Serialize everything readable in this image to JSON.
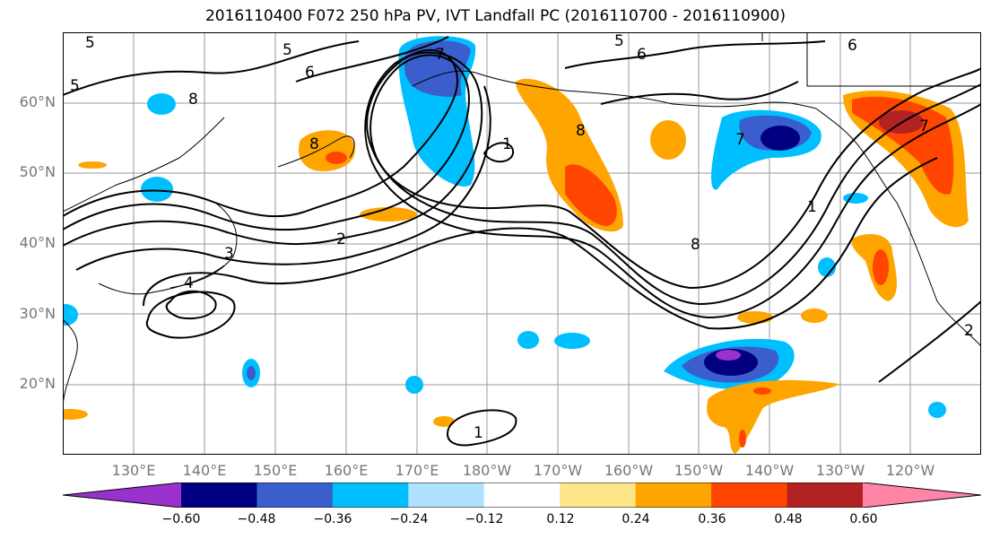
{
  "title": "2016110400 F072 250 hPa PV, IVT Landfall PC (2016110700 - 2016110900)",
  "lat_labels": [
    "60°N",
    "50°N",
    "40°N",
    "30°N",
    "20°N"
  ],
  "lon_labels": [
    "130°E",
    "140°E",
    "150°E",
    "160°E",
    "170°E",
    "180°W",
    "170°W",
    "160°W",
    "150°W",
    "140°W",
    "130°W",
    "120°W"
  ],
  "contour_labels": [
    "5",
    "5",
    "5",
    "5",
    "6",
    "6",
    "6",
    "7",
    "7",
    "7",
    "8",
    "8",
    "8",
    "8",
    "1",
    "1",
    "1",
    "2",
    "2",
    "3",
    "4"
  ],
  "colorbar": {
    "ticks": [
      "−0.60",
      "−0.48",
      "−0.36",
      "−0.24",
      "−0.12",
      "0.12",
      "0.24",
      "0.36",
      "0.48",
      "0.60"
    ],
    "colors": [
      "#9932cc",
      "#000080",
      "#3a5fcd",
      "#00bfff",
      "#b0e2ff",
      "#ffffff",
      "#fde68a",
      "#ffa500",
      "#ff4500",
      "#b22222",
      "#ff85a8"
    ]
  },
  "chart_data": {
    "type": "heatmap",
    "title": "2016110400 F072 250 hPa PV, IVT Landfall PC (2016110700 - 2016110900)",
    "x_ticks": [
      "130°E",
      "140°E",
      "150°E",
      "160°E",
      "170°E",
      "180°W",
      "170°W",
      "160°W",
      "150°W",
      "140°W",
      "130°W",
      "120°W"
    ],
    "y_ticks": [
      "20°N",
      "30°N",
      "40°N",
      "50°N",
      "60°N"
    ],
    "colorbar_levels": [
      -0.6,
      -0.48,
      -0.36,
      -0.24,
      -0.12,
      0.12,
      0.24,
      0.36,
      0.48,
      0.6
    ],
    "contour_field": "250 hPa PV",
    "shaded_field": "IVT Landfall PC"
  }
}
